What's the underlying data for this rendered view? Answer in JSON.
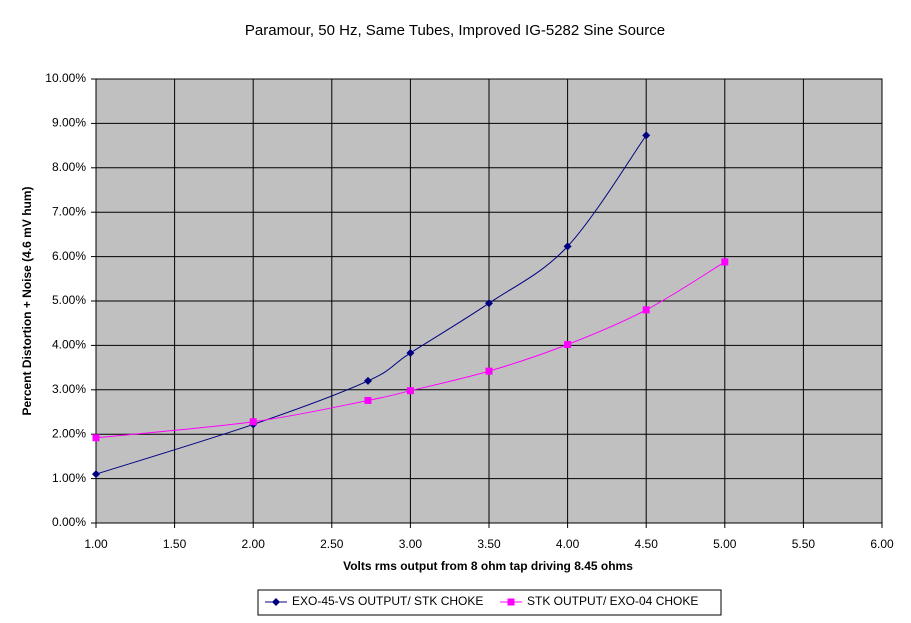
{
  "chart_data": {
    "type": "line",
    "title": "Paramour, 50 Hz, Same Tubes, Improved IG-5282 Sine Source",
    "x_label": "Volts rms output from 8 ohm tap driving 8.45 ohms",
    "y_label": "Percent Distortion + Noise (4.6 mV hum)",
    "xlim": [
      1,
      6
    ],
    "xticks": [
      {
        "value": 1,
        "label": "1.00"
      },
      {
        "value": 1.5,
        "label": "1.50"
      },
      {
        "value": 2,
        "label": "2.00"
      },
      {
        "value": 2.5,
        "label": "2.50"
      },
      {
        "value": 3,
        "label": "3.00"
      },
      {
        "value": 3.5,
        "label": "3.50"
      },
      {
        "value": 4,
        "label": "4.00"
      },
      {
        "value": 4.5,
        "label": "4.50"
      },
      {
        "value": 5,
        "label": "5.00"
      },
      {
        "value": 5.5,
        "label": "5.50"
      },
      {
        "value": 6,
        "label": "6.00"
      }
    ],
    "ylim": [
      0,
      10
    ],
    "yticks": [
      {
        "value": 0,
        "label": "0.00%"
      },
      {
        "value": 1,
        "label": "1.00%"
      },
      {
        "value": 2,
        "label": "2.00%"
      },
      {
        "value": 3,
        "label": "3.00%"
      },
      {
        "value": 4,
        "label": "4.00%"
      },
      {
        "value": 5,
        "label": "5.00%"
      },
      {
        "value": 6,
        "label": "6.00%"
      },
      {
        "value": 7,
        "label": "7.00%"
      },
      {
        "value": 8,
        "label": "8.00%"
      },
      {
        "value": 9,
        "label": "9.00%"
      },
      {
        "value": 10,
        "label": "10.00%"
      }
    ],
    "grid": true,
    "series": [
      {
        "name": "EXO-45-VS OUTPUT/ STK CHOKE",
        "color": "#000080",
        "marker": "diamond",
        "x": [
          1,
          2,
          2.73,
          3,
          3.5,
          4,
          4.5
        ],
        "values": [
          1.1,
          2.22,
          3.2,
          3.83,
          4.95,
          6.23,
          8.73
        ]
      },
      {
        "name": "STK OUTPUT/ EXO-04 CHOKE",
        "color": "#ff00ff",
        "marker": "square",
        "x": [
          1,
          2,
          2.73,
          3,
          3.5,
          4,
          4.5,
          5
        ],
        "values": [
          1.92,
          2.28,
          2.76,
          2.98,
          3.42,
          4.02,
          4.8,
          5.88
        ]
      }
    ]
  }
}
